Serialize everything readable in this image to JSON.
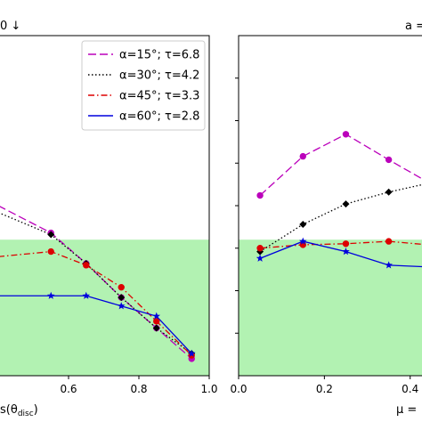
{
  "chart_data": [
    {
      "panel": "left",
      "type": "line",
      "title_fragment": "0 ↓",
      "xlabel_fragment": "s(θ",
      "xlabel_sub": "disc",
      "xlabel_close": ")",
      "xlim": [
        0.4,
        1.0
      ],
      "ylim": [
        0,
        1
      ],
      "xticks": [
        0.6,
        0.8,
        1.0
      ],
      "xtick_labels": [
        "0.6",
        "0.8",
        "1.0"
      ],
      "shaded_band": {
        "color": "#b2f2b2",
        "y_top": 0.4
      },
      "grid": false,
      "legend": {
        "placement": "top-right",
        "entries": [
          {
            "alpha_label": "α=15°; τ=6.8",
            "color": "#bb00bb",
            "style": "dashed"
          },
          {
            "alpha_label": "α=30°; τ=4.2",
            "color": "#000000",
            "style": "dotted"
          },
          {
            "alpha_label": "α=45°; τ=3.3",
            "color": "#dd0000",
            "style": "dashdot"
          },
          {
            "alpha_label": "α=60°; τ=2.8",
            "color": "#0000dd",
            "style": "solid"
          }
        ]
      },
      "series": [
        {
          "color": "#bb00bb",
          "style": "dashed",
          "marker": "circle",
          "x": [
            0.4,
            0.55,
            0.65,
            0.75,
            0.85,
            0.95
          ],
          "y": [
            0.5,
            0.42,
            0.33,
            0.23,
            0.14,
            0.05
          ]
        },
        {
          "color": "#000000",
          "style": "dotted",
          "marker": "diamond",
          "x": [
            0.4,
            0.55,
            0.65,
            0.75,
            0.85,
            0.95
          ],
          "y": [
            0.48,
            0.415,
            0.33,
            0.23,
            0.14,
            0.065
          ]
        },
        {
          "color": "#dd0000",
          "style": "dashdot",
          "marker": "circle",
          "x": [
            0.4,
            0.55,
            0.65,
            0.75,
            0.85,
            0.95
          ],
          "y": [
            0.35,
            0.365,
            0.325,
            0.26,
            0.16,
            0.06
          ]
        },
        {
          "color": "#0000dd",
          "style": "solid",
          "marker": "star",
          "x": [
            0.4,
            0.55,
            0.65,
            0.75,
            0.85,
            0.95
          ],
          "y": [
            0.235,
            0.235,
            0.235,
            0.205,
            0.175,
            0.065
          ]
        }
      ]
    },
    {
      "panel": "right",
      "type": "line",
      "title_fragment": "a =",
      "xlabel_fragment": "μ =",
      "xlim": [
        0.0,
        0.44
      ],
      "ylim": [
        0,
        1
      ],
      "xticks": [
        0.0,
        0.2,
        0.4
      ],
      "xtick_labels": [
        "0.0",
        "0.2",
        "0.4"
      ],
      "shaded_band": {
        "color": "#b2f2b2",
        "y_top": 0.4
      },
      "grid": false,
      "series": [
        {
          "color": "#bb00bb",
          "style": "dashed",
          "marker": "circle",
          "x": [
            0.05,
            0.15,
            0.25,
            0.35,
            0.44
          ],
          "y": [
            0.53,
            0.645,
            0.71,
            0.635,
            0.57
          ]
        },
        {
          "color": "#000000",
          "style": "dotted",
          "marker": "diamond",
          "x": [
            0.05,
            0.15,
            0.25,
            0.35,
            0.44
          ],
          "y": [
            0.365,
            0.445,
            0.505,
            0.54,
            0.565
          ]
        },
        {
          "color": "#dd0000",
          "style": "dashdot",
          "marker": "circle",
          "x": [
            0.05,
            0.15,
            0.25,
            0.35,
            0.44
          ],
          "y": [
            0.375,
            0.385,
            0.388,
            0.395,
            0.385
          ]
        },
        {
          "color": "#0000dd",
          "style": "solid",
          "marker": "star",
          "x": [
            0.05,
            0.15,
            0.25,
            0.35,
            0.44
          ],
          "y": [
            0.345,
            0.395,
            0.365,
            0.325,
            0.32
          ]
        }
      ]
    }
  ]
}
